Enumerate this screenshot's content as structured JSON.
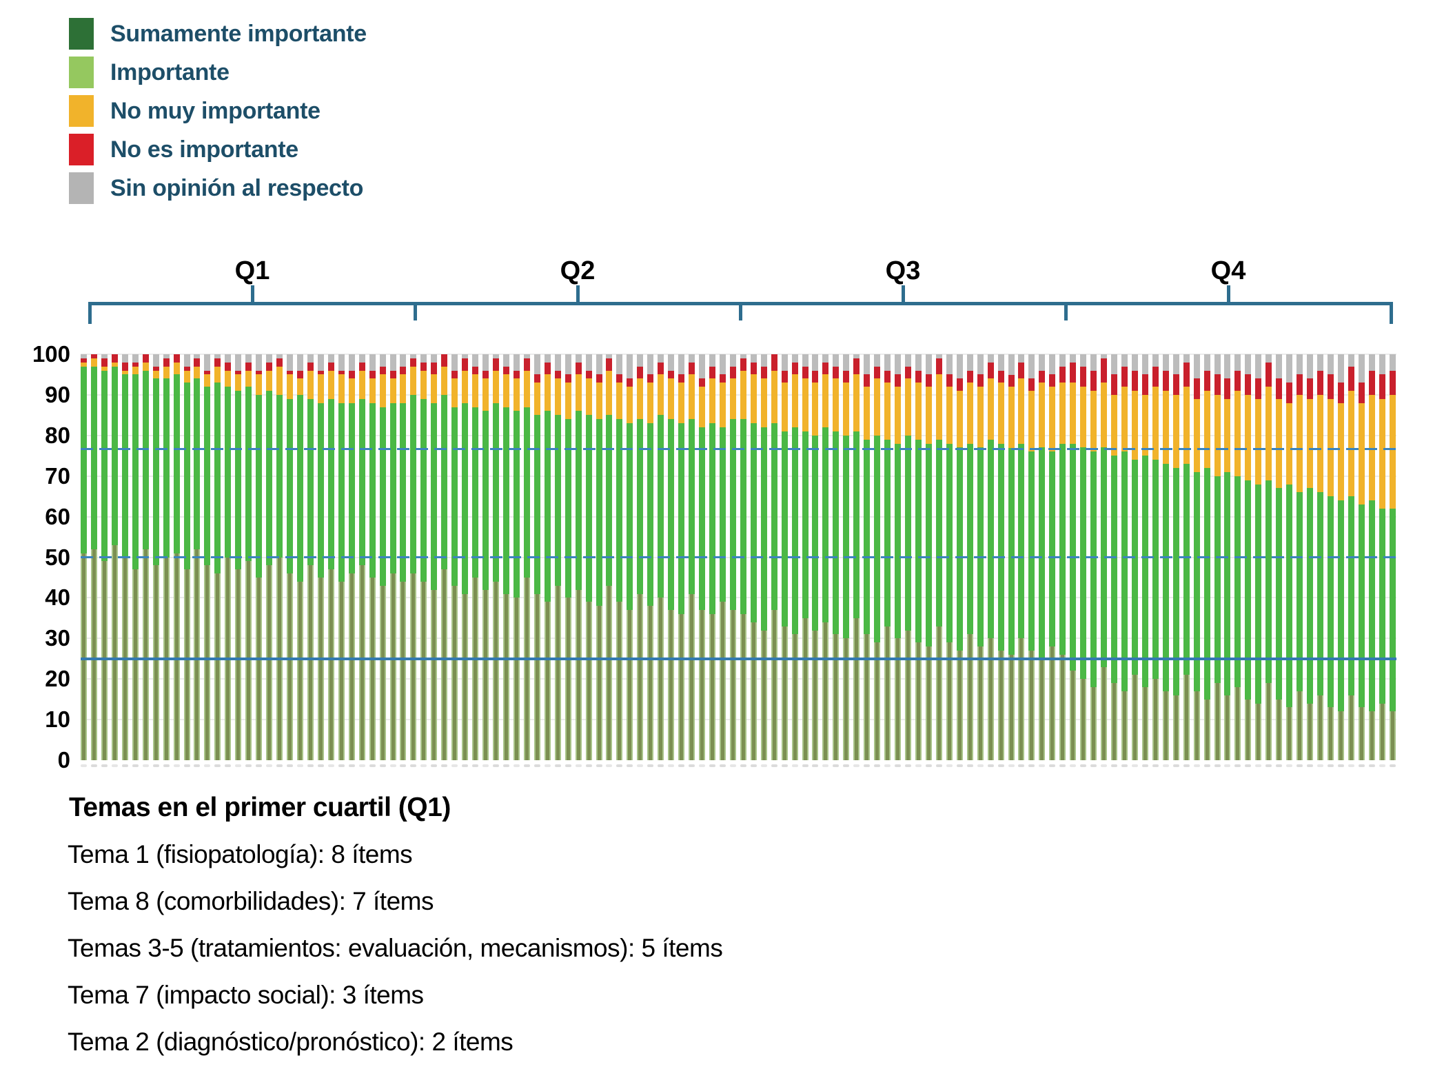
{
  "legend": {
    "items": [
      {
        "label": "Sumamente importante",
        "color": "#2d7036"
      },
      {
        "label": "Importante",
        "color": "#95c85f"
      },
      {
        "label": "No muy importante",
        "color": "#f1b32b"
      },
      {
        "label": "No es importante",
        "color": "#da1f28"
      },
      {
        "label": "Sin opinión al respecto",
        "color": "#b4b4b4"
      }
    ]
  },
  "footer": {
    "title": "Temas en el primer cuartil (Q1)",
    "lines": [
      "Tema 1 (fisiopatología): 8 ítems",
      "Tema 8 (comorbilidades): 7 ítems",
      "Temas 3-5 (tratamientos: evaluación, mecanismos): 5 ítems",
      "Tema 7 (impacto social): 3 ítems",
      "Tema 2 (diagnóstico/pronóstico): 2 ítems"
    ]
  },
  "chart_data": {
    "type": "bar",
    "subtype": "stacked-percent-vertical",
    "title": "",
    "xlabel": "",
    "ylabel": "",
    "ylim": [
      0,
      100
    ],
    "yticks": [
      0,
      10,
      20,
      30,
      40,
      50,
      60,
      70,
      80,
      90,
      100
    ],
    "grid": "faint-horizontal",
    "legend_position": "top-left",
    "quartile_labels": [
      "Q1",
      "Q2",
      "Q3",
      "Q4"
    ],
    "bars_per_quartile": 32,
    "n_bars": 128,
    "series_order": [
      "sumamente",
      "importante",
      "no_muy",
      "no_es",
      "sin_opinion"
    ],
    "series_names": {
      "sumamente": "Sumamente importante",
      "importante": "Importante",
      "no_muy": "No muy importante",
      "no_es": "No es importante",
      "sin_opinion": "Sin opinión al respecto"
    },
    "bar_colors": {
      "sumamente": "#7b8f52",
      "importante": "#4bb845",
      "no_muy": "#f1b32b",
      "no_es": "#c9202c",
      "sin_opinion": "#bcbcbc"
    },
    "reference_lines": [
      {
        "value": 76.5,
        "style": "dashed",
        "color": "#3b84bd"
      },
      {
        "value": 50,
        "style": "dashed",
        "color": "#3b84bd"
      },
      {
        "value": 25,
        "style": "solid",
        "color": "#337ab0"
      }
    ],
    "cumulative_tops": {
      "sumamente": [
        51,
        52,
        49,
        53,
        50,
        47,
        52,
        48,
        50,
        51,
        47,
        52,
        48,
        46,
        50,
        47,
        49,
        45,
        48,
        50,
        46,
        44,
        48,
        45,
        47,
        44,
        46,
        48,
        45,
        43,
        46,
        44,
        46,
        44,
        42,
        47,
        43,
        41,
        45,
        42,
        44,
        41,
        40,
        45,
        41,
        39,
        43,
        40,
        42,
        39,
        38,
        43,
        39,
        37,
        41,
        38,
        40,
        37,
        36,
        41,
        37,
        36,
        39,
        37,
        36,
        34,
        32,
        37,
        33,
        31,
        35,
        32,
        34,
        31,
        30,
        35,
        31,
        29,
        33,
        30,
        32,
        29,
        28,
        33,
        29,
        27,
        31,
        28,
        30,
        27,
        26,
        30,
        27,
        25,
        28,
        26,
        22,
        20,
        18,
        23,
        19,
        17,
        21,
        18,
        20,
        17,
        16,
        21,
        17,
        15,
        19,
        16,
        18,
        15,
        14,
        19,
        15,
        13,
        17,
        14,
        16,
        13,
        12,
        16,
        13,
        12,
        14,
        12
      ],
      "importante": [
        97,
        97,
        96,
        97,
        95,
        95,
        96,
        94,
        94,
        95,
        93,
        94,
        92,
        93,
        92,
        91,
        92,
        90,
        91,
        90,
        89,
        90,
        89,
        88,
        89,
        88,
        88,
        89,
        88,
        87,
        88,
        88,
        90,
        89,
        88,
        90,
        87,
        88,
        87,
        86,
        88,
        87,
        86,
        87,
        85,
        86,
        85,
        84,
        86,
        85,
        84,
        85,
        84,
        83,
        84,
        83,
        85,
        84,
        83,
        84,
        82,
        83,
        82,
        84,
        84,
        83,
        82,
        83,
        81,
        82,
        81,
        80,
        82,
        81,
        80,
        81,
        79,
        80,
        79,
        78,
        80,
        79,
        78,
        79,
        78,
        77,
        78,
        77,
        79,
        78,
        77,
        78,
        76,
        77,
        76,
        78,
        78,
        77,
        76,
        77,
        75,
        76,
        74,
        75,
        74,
        73,
        72,
        73,
        71,
        72,
        70,
        71,
        70,
        69,
        68,
        69,
        67,
        68,
        66,
        67,
        66,
        65,
        64,
        65,
        63,
        64,
        62,
        62
      ],
      "no_muy": [
        98,
        99,
        97,
        98,
        96,
        97,
        98,
        96,
        97,
        98,
        96,
        97,
        95,
        97,
        96,
        95,
        96,
        95,
        96,
        97,
        95,
        94,
        96,
        95,
        96,
        95,
        94,
        96,
        94,
        95,
        94,
        95,
        97,
        96,
        95,
        97,
        94,
        96,
        95,
        94,
        96,
        95,
        94,
        96,
        93,
        95,
        94,
        93,
        95,
        94,
        93,
        96,
        93,
        92,
        94,
        93,
        95,
        94,
        93,
        95,
        92,
        94,
        93,
        94,
        96,
        95,
        94,
        96,
        93,
        95,
        94,
        93,
        95,
        94,
        93,
        95,
        92,
        94,
        93,
        92,
        94,
        93,
        92,
        95,
        92,
        91,
        93,
        92,
        94,
        93,
        92,
        94,
        91,
        93,
        92,
        93,
        93,
        92,
        91,
        93,
        90,
        92,
        91,
        90,
        92,
        91,
        90,
        92,
        89,
        91,
        90,
        89,
        91,
        90,
        89,
        92,
        89,
        88,
        90,
        89,
        90,
        89,
        88,
        91,
        88,
        90,
        89,
        90
      ],
      "no_es": [
        99,
        100,
        99,
        100,
        98,
        98,
        100,
        97,
        99,
        100,
        97,
        99,
        96,
        99,
        98,
        96,
        98,
        96,
        98,
        99,
        96,
        96,
        98,
        96,
        98,
        96,
        96,
        98,
        96,
        97,
        96,
        97,
        99,
        98,
        98,
        100,
        96,
        99,
        97,
        96,
        99,
        97,
        96,
        99,
        95,
        98,
        96,
        95,
        98,
        96,
        95,
        99,
        95,
        94,
        97,
        95,
        98,
        96,
        95,
        98,
        94,
        97,
        95,
        97,
        99,
        98,
        97,
        100,
        96,
        98,
        97,
        96,
        98,
        97,
        96,
        99,
        95,
        97,
        96,
        95,
        97,
        96,
        95,
        99,
        95,
        94,
        96,
        95,
        98,
        96,
        95,
        98,
        94,
        96,
        95,
        97,
        98,
        97,
        96,
        99,
        95,
        97,
        96,
        95,
        97,
        96,
        95,
        98,
        94,
        96,
        95,
        94,
        96,
        95,
        94,
        98,
        94,
        93,
        95,
        94,
        96,
        95,
        93,
        97,
        93,
        96,
        95,
        96
      ],
      "sin_opinion": 100
    }
  }
}
